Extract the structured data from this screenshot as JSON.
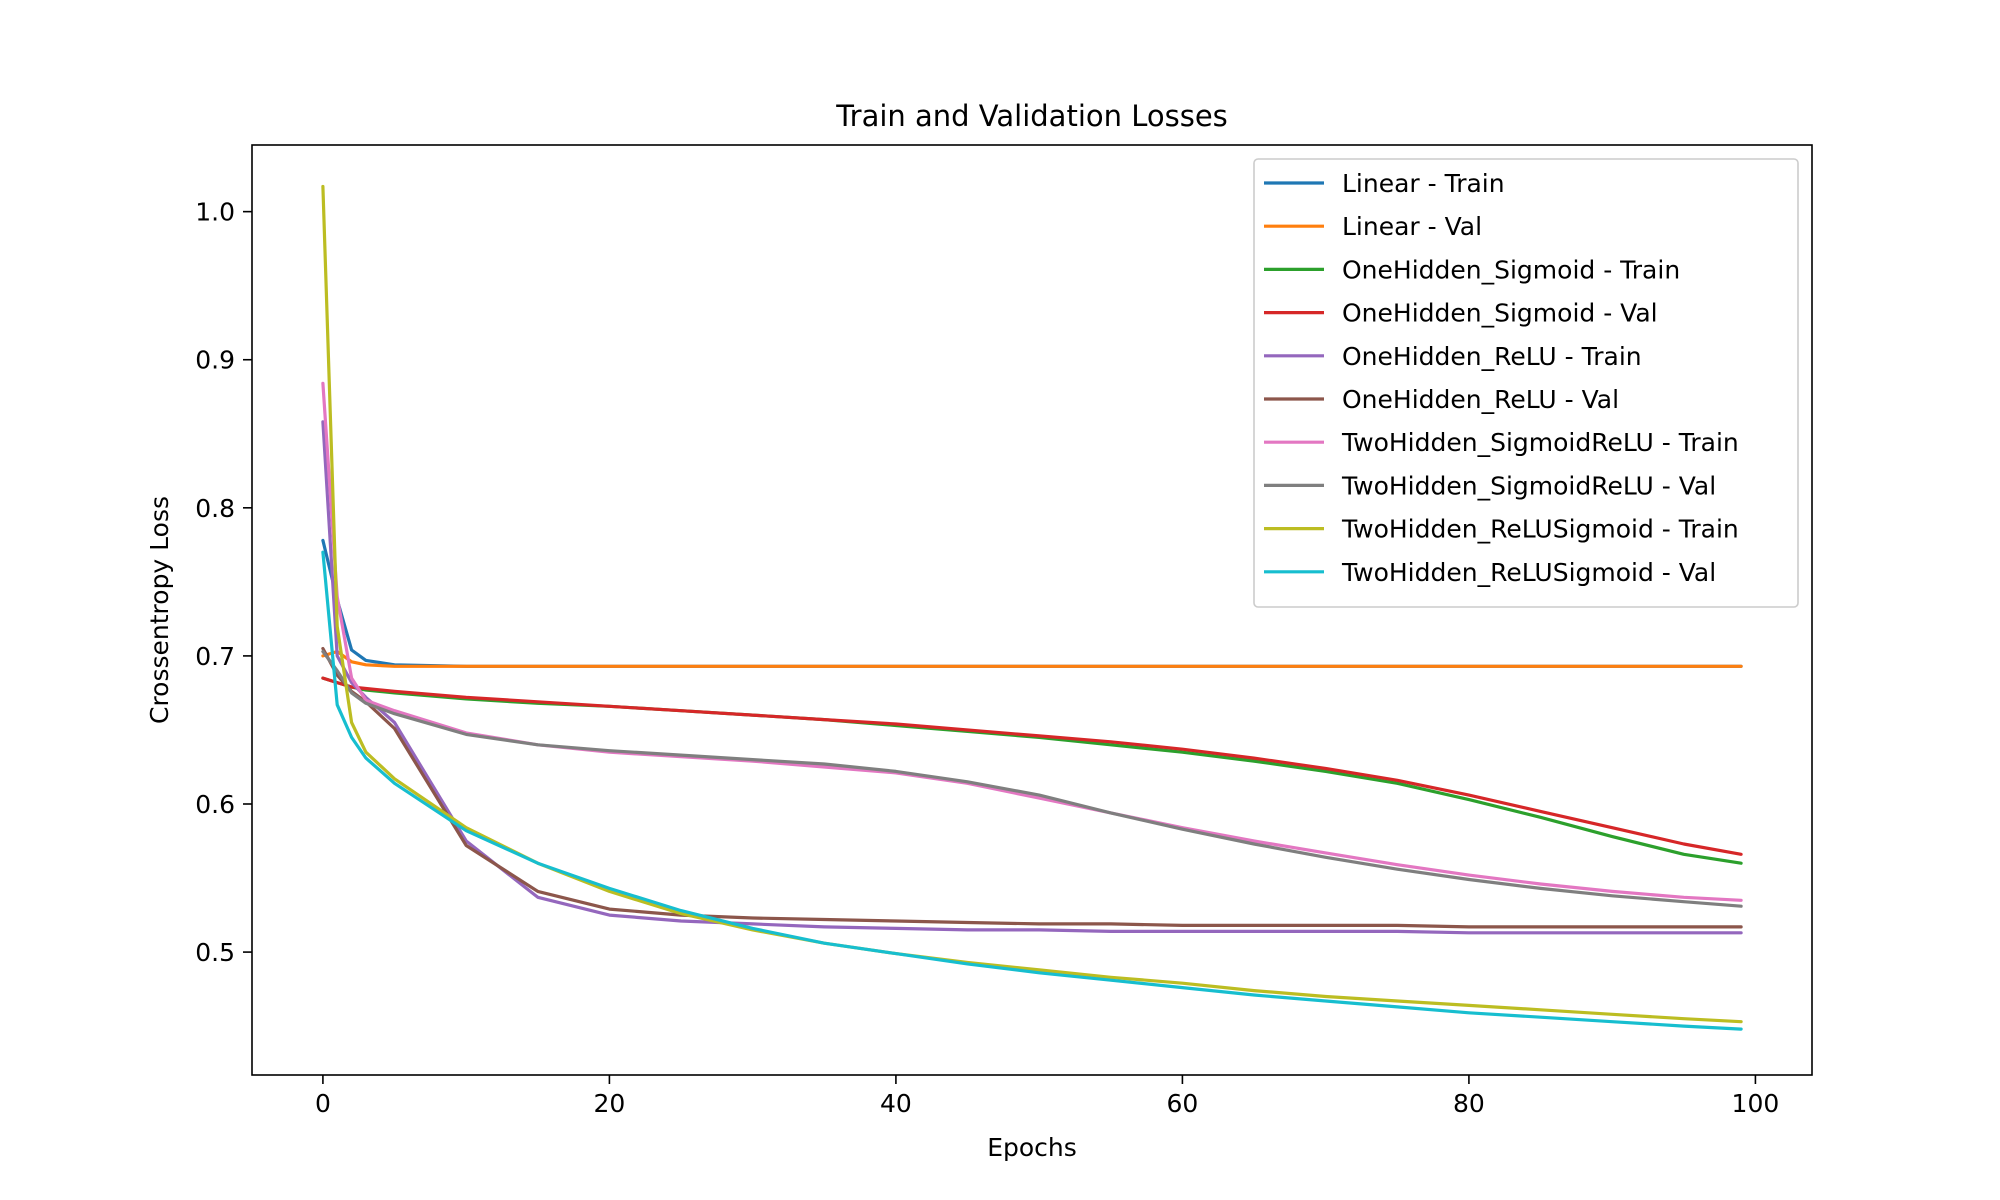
{
  "chart_data": {
    "type": "line",
    "title": "Train and Validation Losses",
    "xlabel": "Epochs",
    "ylabel": "Crossentropy Loss",
    "xlim": [
      -4.95,
      103.95
    ],
    "ylim": [
      0.417,
      1.045
    ],
    "xticks": [
      0,
      20,
      40,
      60,
      80,
      100
    ],
    "xtick_labels": [
      "0",
      "20",
      "40",
      "60",
      "80",
      "100"
    ],
    "yticks": [
      0.5,
      0.6,
      0.7,
      0.8,
      0.9,
      1.0
    ],
    "ytick_labels": [
      "0.5",
      "0.6",
      "0.7",
      "0.8",
      "0.9",
      "1.0"
    ],
    "grid": false,
    "legend_position": "top-right",
    "x": [
      0,
      1,
      2,
      3,
      5,
      10,
      15,
      20,
      25,
      30,
      35,
      40,
      45,
      50,
      55,
      60,
      65,
      70,
      75,
      80,
      85,
      90,
      95,
      99
    ],
    "series": [
      {
        "name": "Linear - Train",
        "color": "#1f77b4",
        "values": [
          0.778,
          0.738,
          0.704,
          0.697,
          0.694,
          0.693,
          0.693,
          0.693,
          0.693,
          0.693,
          0.693,
          0.693,
          0.693,
          0.693,
          0.693,
          0.693,
          0.693,
          0.693,
          0.693,
          0.693,
          0.693,
          0.693,
          0.693,
          0.693
        ]
      },
      {
        "name": "Linear - Val",
        "color": "#ff7f0e",
        "values": [
          0.7,
          0.703,
          0.696,
          0.694,
          0.693,
          0.693,
          0.693,
          0.693,
          0.693,
          0.693,
          0.693,
          0.693,
          0.693,
          0.693,
          0.693,
          0.693,
          0.693,
          0.693,
          0.693,
          0.693,
          0.693,
          0.693,
          0.693,
          0.693
        ]
      },
      {
        "name": "OneHidden_Sigmoid - Train",
        "color": "#2ca02c",
        "values": [
          0.685,
          0.682,
          0.679,
          0.677,
          0.675,
          0.671,
          0.668,
          0.666,
          0.663,
          0.66,
          0.657,
          0.653,
          0.649,
          0.645,
          0.64,
          0.635,
          0.629,
          0.622,
          0.614,
          0.603,
          0.591,
          0.578,
          0.566,
          0.56
        ]
      },
      {
        "name": "OneHidden_Sigmoid - Val",
        "color": "#d62728",
        "values": [
          0.685,
          0.682,
          0.679,
          0.678,
          0.676,
          0.672,
          0.669,
          0.666,
          0.663,
          0.66,
          0.657,
          0.654,
          0.65,
          0.646,
          0.642,
          0.637,
          0.631,
          0.624,
          0.616,
          0.606,
          0.595,
          0.584,
          0.573,
          0.566
        ]
      },
      {
        "name": "OneHidden_ReLU - Train",
        "color": "#9467bd",
        "values": [
          0.858,
          0.7,
          0.682,
          0.672,
          0.655,
          0.575,
          0.537,
          0.525,
          0.521,
          0.519,
          0.517,
          0.516,
          0.515,
          0.515,
          0.514,
          0.514,
          0.514,
          0.514,
          0.514,
          0.513,
          0.513,
          0.513,
          0.513,
          0.513
        ]
      },
      {
        "name": "OneHidden_ReLU - Val",
        "color": "#8c564b",
        "values": [
          0.705,
          0.687,
          0.676,
          0.669,
          0.651,
          0.572,
          0.541,
          0.529,
          0.525,
          0.523,
          0.522,
          0.521,
          0.52,
          0.519,
          0.519,
          0.518,
          0.518,
          0.518,
          0.518,
          0.517,
          0.517,
          0.517,
          0.517,
          0.517
        ]
      },
      {
        "name": "TwoHidden_SigmoidReLU - Train",
        "color": "#e377c2",
        "values": [
          0.884,
          0.74,
          0.685,
          0.67,
          0.663,
          0.648,
          0.64,
          0.635,
          0.632,
          0.629,
          0.625,
          0.621,
          0.614,
          0.604,
          0.594,
          0.584,
          0.575,
          0.567,
          0.559,
          0.552,
          0.546,
          0.541,
          0.537,
          0.535
        ]
      },
      {
        "name": "TwoHidden_SigmoidReLU - Val",
        "color": "#7f7f7f",
        "values": [
          0.703,
          0.69,
          0.675,
          0.668,
          0.661,
          0.647,
          0.64,
          0.636,
          0.633,
          0.63,
          0.627,
          0.622,
          0.615,
          0.606,
          0.594,
          0.583,
          0.573,
          0.564,
          0.556,
          0.549,
          0.543,
          0.538,
          0.534,
          0.531
        ]
      },
      {
        "name": "TwoHidden_ReLUSigmoid - Train",
        "color": "#bcbd22",
        "values": [
          1.017,
          0.72,
          0.655,
          0.635,
          0.617,
          0.584,
          0.56,
          0.541,
          0.526,
          0.515,
          0.506,
          0.499,
          0.493,
          0.488,
          0.483,
          0.479,
          0.474,
          0.47,
          0.467,
          0.464,
          0.461,
          0.458,
          0.455,
          0.453
        ]
      },
      {
        "name": "TwoHidden_ReLUSigmoid - Val",
        "color": "#17becf",
        "values": [
          0.77,
          0.667,
          0.645,
          0.631,
          0.614,
          0.582,
          0.56,
          0.543,
          0.528,
          0.516,
          0.506,
          0.499,
          0.492,
          0.486,
          0.481,
          0.476,
          0.471,
          0.467,
          0.463,
          0.459,
          0.456,
          0.453,
          0.45,
          0.448
        ]
      }
    ]
  }
}
